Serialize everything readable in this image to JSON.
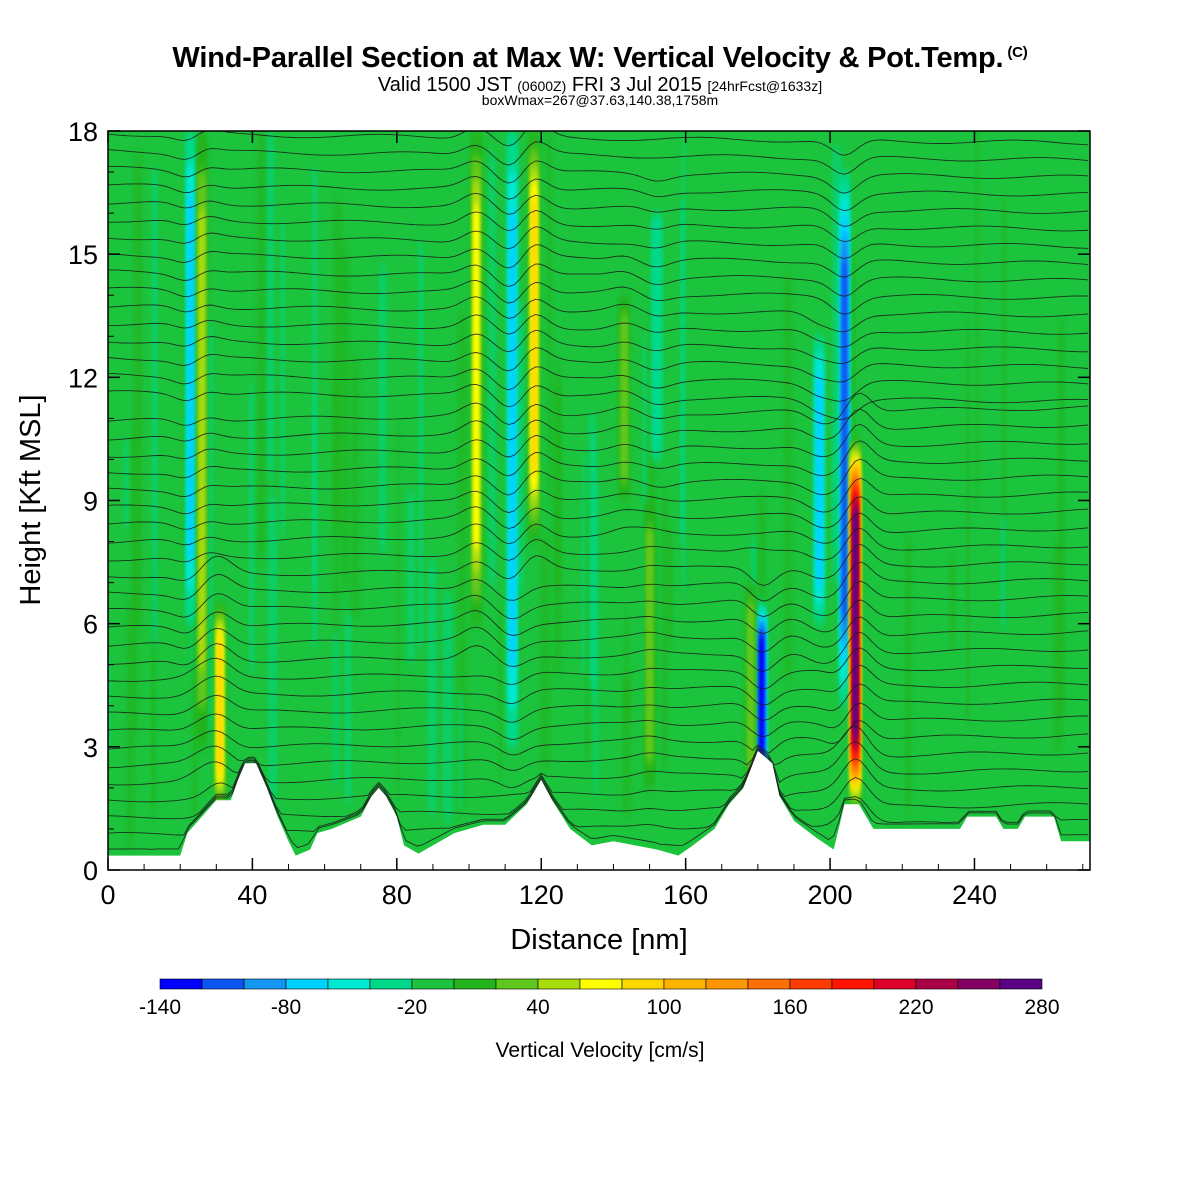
{
  "header": {
    "title": "Wind-Parallel Section at Max W: Vertical Velocity & Pot.Temp.",
    "title_mark": "(C)",
    "subtitle_valid": "Valid 1500 JST",
    "subtitle_utc": "(0600Z)",
    "subtitle_date": "FRI 3 Jul 2015",
    "subtitle_fcst": "[24hrFcst@1633z]",
    "subtitle2": "boxWmax=267@37.63,140.38,1758m"
  },
  "chart_data": {
    "type": "heatmap",
    "xlabel": "Distance [nm]",
    "ylabel": "Height [Kft MSL]",
    "xlim": [
      0,
      272
    ],
    "ylim": [
      0,
      18
    ],
    "x_ticks": [
      "0",
      "40",
      "80",
      "120",
      "160",
      "200",
      "240"
    ],
    "y_ticks": [
      "0",
      "3",
      "6",
      "9",
      "12",
      "15",
      "18"
    ],
    "background_value": -20,
    "updraft_columns": [
      {
        "x": 26,
        "zmin": 3,
        "zmax": 18,
        "w": 55
      },
      {
        "x": 31,
        "zmin": 1.5,
        "zmax": 6.5,
        "w": 95
      },
      {
        "x": 102,
        "zmin": 6,
        "zmax": 18,
        "w": 75
      },
      {
        "x": 118,
        "zmin": 8,
        "zmax": 18,
        "w": 100
      },
      {
        "x": 143,
        "zmin": 9,
        "zmax": 14,
        "w": 35
      },
      {
        "x": 150,
        "zmin": 2,
        "zmax": 9,
        "w": 25
      },
      {
        "x": 178,
        "zmin": 2,
        "zmax": 7,
        "w": 30
      },
      {
        "x": 207,
        "zmin": 1.5,
        "zmax": 10.5,
        "w": 267
      }
    ],
    "downdraft_columns": [
      {
        "x": 23,
        "zmin": 6,
        "zmax": 18,
        "w": -70
      },
      {
        "x": 112,
        "zmin": 3,
        "zmax": 18,
        "w": -80
      },
      {
        "x": 152,
        "zmin": 10,
        "zmax": 16,
        "w": -40
      },
      {
        "x": 181,
        "zmin": 2,
        "zmax": 6.5,
        "w": -130
      },
      {
        "x": 197,
        "zmin": 6,
        "zmax": 13,
        "w": -70
      },
      {
        "x": 204,
        "zmin": 4,
        "zmax": 17,
        "w": -110
      }
    ],
    "terrain_height_kft": [
      [
        0,
        0.35
      ],
      [
        20,
        0.35
      ],
      [
        22,
        0.9
      ],
      [
        26,
        1.3
      ],
      [
        30,
        1.7
      ],
      [
        34,
        1.7
      ],
      [
        36,
        2.2
      ],
      [
        38,
        2.6
      ],
      [
        41,
        2.6
      ],
      [
        44,
        2.0
      ],
      [
        47,
        1.3
      ],
      [
        50,
        0.7
      ],
      [
        52,
        0.35
      ],
      [
        56,
        0.5
      ],
      [
        58,
        0.9
      ],
      [
        62,
        1.0
      ],
      [
        70,
        1.3
      ],
      [
        73,
        1.8
      ],
      [
        75,
        2.0
      ],
      [
        77,
        1.8
      ],
      [
        80,
        1.3
      ],
      [
        82,
        0.6
      ],
      [
        86,
        0.4
      ],
      [
        90,
        0.6
      ],
      [
        96,
        0.9
      ],
      [
        104,
        1.1
      ],
      [
        110,
        1.1
      ],
      [
        116,
        1.6
      ],
      [
        120,
        2.2
      ],
      [
        123,
        1.7
      ],
      [
        128,
        1.0
      ],
      [
        134,
        0.6
      ],
      [
        140,
        0.7
      ],
      [
        146,
        0.6
      ],
      [
        152,
        0.5
      ],
      [
        158,
        0.35
      ],
      [
        162,
        0.6
      ],
      [
        168,
        1.0
      ],
      [
        172,
        1.6
      ],
      [
        176,
        2.0
      ],
      [
        180,
        2.9
      ],
      [
        184,
        2.6
      ],
      [
        186,
        1.8
      ],
      [
        190,
        1.2
      ],
      [
        196,
        0.8
      ],
      [
        201,
        0.5
      ],
      [
        204,
        1.6
      ],
      [
        208,
        1.6
      ],
      [
        210,
        1.3
      ],
      [
        212,
        1.0
      ],
      [
        236,
        1.0
      ],
      [
        238,
        1.3
      ],
      [
        246,
        1.3
      ],
      [
        248,
        1.0
      ],
      [
        252,
        1.0
      ],
      [
        254,
        1.3
      ],
      [
        262,
        1.3
      ],
      [
        264,
        0.7
      ],
      [
        272,
        0.7
      ]
    ],
    "colorbar": {
      "label": "Vertical Velocity [cm/s]",
      "tick_labels": [
        "-140",
        "-80",
        "-20",
        "40",
        "100",
        "160",
        "220",
        "280"
      ],
      "levels": [
        -140,
        -120,
        -100,
        -80,
        -60,
        -40,
        -20,
        0,
        20,
        40,
        60,
        80,
        100,
        120,
        140,
        160,
        180,
        200,
        220,
        240,
        260,
        280
      ],
      "colors": [
        "#0000ff",
        "#0a55f2",
        "#1496f0",
        "#00d2ff",
        "#00e8d2",
        "#00d88a",
        "#1cc33c",
        "#22b31c",
        "#60c81c",
        "#a8dc0a",
        "#ffff00",
        "#ffd700",
        "#ffb400",
        "#ff9600",
        "#ff6e00",
        "#ff3c00",
        "#ff1400",
        "#dc0028",
        "#aa0046",
        "#820064",
        "#5a0082"
      ]
    }
  }
}
